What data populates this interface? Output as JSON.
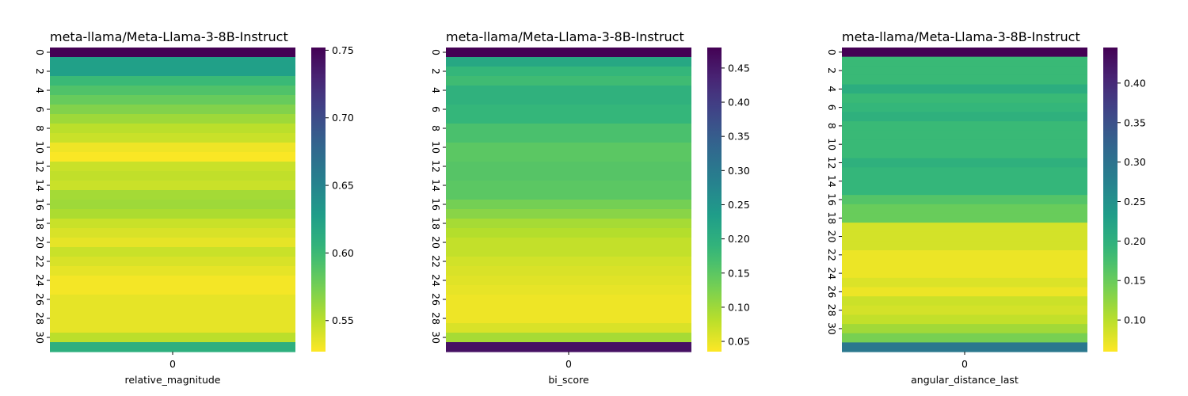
{
  "chart_data": [
    {
      "type": "heatmap",
      "title": "meta-llama/Meta-Llama-3-8B-Instruct",
      "xlabel": "relative_magnitude",
      "x_categories": [
        "0"
      ],
      "y_tick_labels": [
        "0",
        "2",
        "4",
        "6",
        "8",
        "10",
        "12",
        "14",
        "16",
        "18",
        "20",
        "22",
        "24",
        "26",
        "28",
        "30"
      ],
      "colormap": "viridis_r",
      "vmin": 0.527,
      "vmax": 0.752,
      "colorbar_ticks": [
        0.55,
        0.6,
        0.65,
        0.7,
        0.75
      ],
      "values": [
        0.752,
        0.625,
        0.625,
        0.6,
        0.59,
        0.58,
        0.57,
        0.56,
        0.55,
        0.545,
        0.532,
        0.528,
        0.545,
        0.548,
        0.545,
        0.558,
        0.56,
        0.555,
        0.545,
        0.54,
        0.535,
        0.545,
        0.54,
        0.535,
        0.53,
        0.53,
        0.535,
        0.535,
        0.535,
        0.535,
        0.55,
        0.61
      ]
    },
    {
      "type": "heatmap",
      "title": "meta-llama/Meta-Llama-3-8B-Instruct",
      "xlabel": "bi_score",
      "x_categories": [
        "0"
      ],
      "y_tick_labels": [
        "0",
        "2",
        "4",
        "6",
        "8",
        "10",
        "12",
        "14",
        "16",
        "18",
        "20",
        "22",
        "24",
        "26",
        "28",
        "30"
      ],
      "colormap": "viridis_r",
      "vmin": 0.035,
      "vmax": 0.48,
      "colorbar_ticks": [
        0.05,
        0.1,
        0.15,
        0.2,
        0.25,
        0.3,
        0.35,
        0.4,
        0.45
      ],
      "values": [
        0.48,
        0.215,
        0.185,
        0.175,
        0.195,
        0.195,
        0.185,
        0.185,
        0.165,
        0.165,
        0.15,
        0.15,
        0.155,
        0.155,
        0.15,
        0.15,
        0.13,
        0.115,
        0.095,
        0.085,
        0.075,
        0.075,
        0.065,
        0.06,
        0.055,
        0.05,
        0.045,
        0.045,
        0.045,
        0.06,
        0.095,
        0.46
      ]
    },
    {
      "type": "heatmap",
      "title": "meta-llama/Meta-Llama-3-8B-Instruct",
      "xlabel": "angular_distance_last",
      "x_categories": [
        "0"
      ],
      "y_tick_labels": [
        "0",
        "2",
        "4",
        "6",
        "8",
        "10",
        "12",
        "14",
        "16",
        "18",
        "20",
        "22",
        "24",
        "26",
        "28",
        "30"
      ],
      "colormap": "viridis_r",
      "vmin": 0.06,
      "vmax": 0.445,
      "colorbar_ticks": [
        0.1,
        0.15,
        0.2,
        0.25,
        0.3,
        0.35,
        0.4
      ],
      "values": [
        0.445,
        0.185,
        0.185,
        0.185,
        0.205,
        0.185,
        0.19,
        0.2,
        0.185,
        0.185,
        0.185,
        0.185,
        0.2,
        0.19,
        0.19,
        0.19,
        0.165,
        0.15,
        0.15,
        0.085,
        0.085,
        0.085,
        0.07,
        0.07,
        0.07,
        0.08,
        0.07,
        0.09,
        0.085,
        0.095,
        0.115,
        0.14,
        0.29
      ]
    }
  ]
}
